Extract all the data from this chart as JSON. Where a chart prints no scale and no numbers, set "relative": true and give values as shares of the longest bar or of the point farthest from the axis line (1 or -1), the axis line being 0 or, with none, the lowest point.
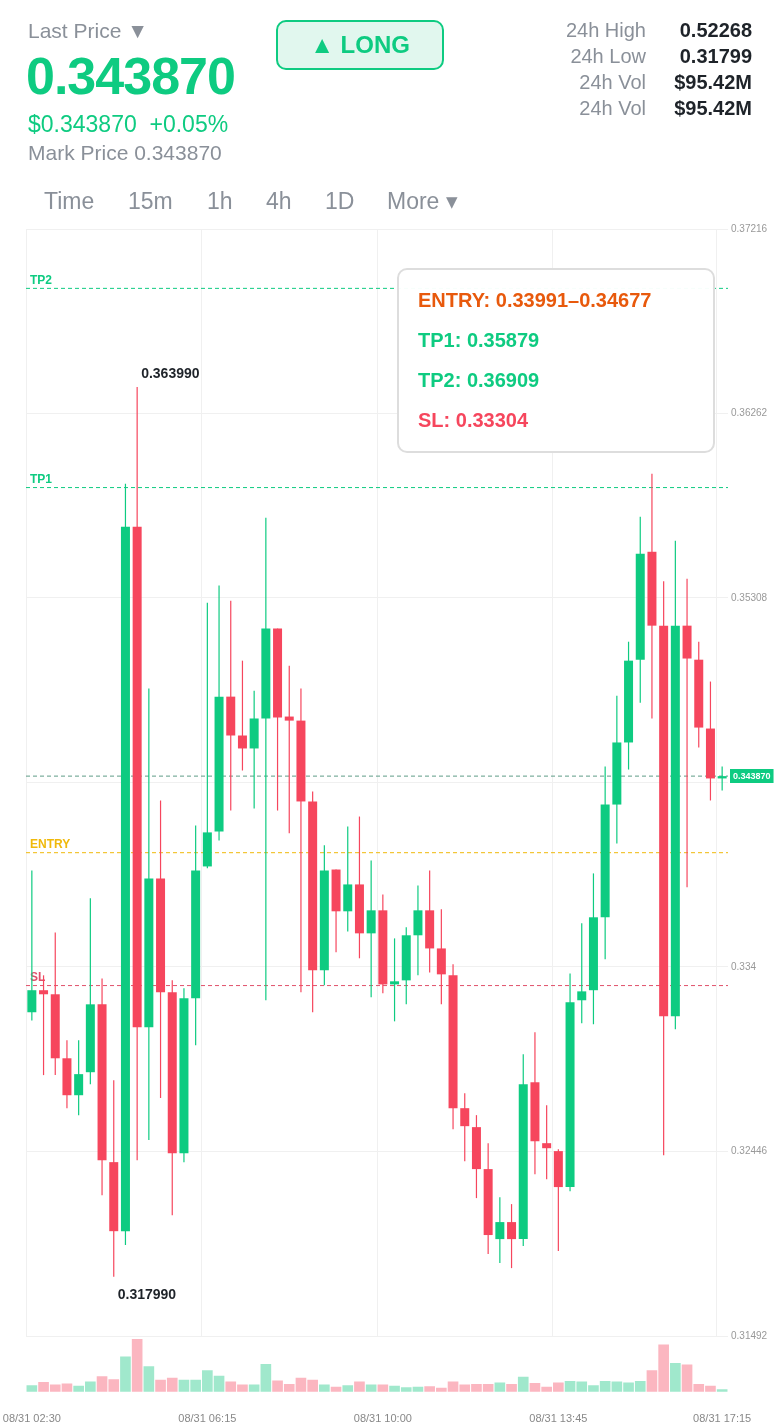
{
  "chart_data": [
    {
      "type": "candlestick",
      "categories": [
        "08/31 02:30",
        null,
        null,
        null,
        null,
        null,
        null,
        null,
        null,
        null,
        null,
        null,
        null,
        null,
        null,
        "08/31 06:15",
        null,
        null,
        null,
        null,
        null,
        null,
        null,
        null,
        null,
        null,
        null,
        null,
        null,
        null,
        "08/31 10:00",
        null,
        null,
        null,
        null,
        null,
        null,
        null,
        null,
        null,
        null,
        null,
        null,
        null,
        null,
        "08/31 13:45",
        null,
        null,
        null,
        null,
        null,
        null,
        null,
        null,
        null,
        null,
        null,
        null,
        null,
        "08/31 17:15"
      ],
      "ohlc": [
        [
          0.33166,
          0.33899,
          0.33124,
          0.3328
        ],
        [
          0.3328,
          0.33357,
          0.32841,
          0.33259
        ],
        [
          0.33259,
          0.33579,
          0.32841,
          0.32928
        ],
        [
          0.32928,
          0.33021,
          0.3267,
          0.32737
        ],
        [
          0.32737,
          0.33021,
          0.32634,
          0.32846
        ],
        [
          0.32856,
          0.33755,
          0.32794,
          0.33207
        ],
        [
          0.33207,
          0.33341,
          0.3222,
          0.32401
        ],
        [
          0.32391,
          0.32815,
          0.31799,
          0.32034
        ],
        [
          0.32034,
          0.35899,
          0.31962,
          0.35677
        ],
        [
          0.35677,
          0.36399,
          0.32401,
          0.33088
        ],
        [
          0.33088,
          0.3484,
          0.32505,
          0.33858
        ],
        [
          0.33858,
          0.34261,
          0.32722,
          0.33269
        ],
        [
          0.33269,
          0.33331,
          0.32117,
          0.32437
        ],
        [
          0.32437,
          0.3329,
          0.32391,
          0.33238
        ],
        [
          0.33238,
          0.34132,
          0.32995,
          0.33899
        ],
        [
          0.3392,
          0.35283,
          0.3391,
          0.34096
        ],
        [
          0.34101,
          0.35372,
          0.34054,
          0.34798
        ],
        [
          0.34798,
          0.35294,
          0.34209,
          0.34597
        ],
        [
          0.34597,
          0.34984,
          0.34416,
          0.3453
        ],
        [
          0.3453,
          0.34829,
          0.3422,
          0.34685
        ],
        [
          0.34685,
          0.35723,
          0.33228,
          0.3515
        ],
        [
          0.3515,
          0.3515,
          0.34209,
          0.3469
        ],
        [
          0.34695,
          0.34958,
          0.34091,
          0.34674
        ],
        [
          0.34674,
          0.3484,
          0.33269,
          0.34256
        ],
        [
          0.34256,
          0.34308,
          0.33166,
          0.33383
        ],
        [
          0.33383,
          0.34029,
          0.33305,
          0.33899
        ],
        [
          0.33904,
          0.33904,
          0.33476,
          0.33688
        ],
        [
          0.33688,
          0.34127,
          0.33584,
          0.33827
        ],
        [
          0.33827,
          0.34178,
          0.33445,
          0.33574
        ],
        [
          0.33574,
          0.33951,
          0.33244,
          0.33693
        ],
        [
          0.33693,
          0.33775,
          0.33264,
          0.3331
        ],
        [
          0.3331,
          0.33548,
          0.33119,
          0.33326
        ],
        [
          0.33331,
          0.33605,
          0.33207,
          0.33564
        ],
        [
          0.33564,
          0.33822,
          0.33357,
          0.33693
        ],
        [
          0.33693,
          0.33899,
          0.33372,
          0.33496
        ],
        [
          0.33496,
          0.33698,
          0.33207,
          0.33362
        ],
        [
          0.33357,
          0.33414,
          0.32561,
          0.3267
        ],
        [
          0.3267,
          0.32747,
          0.32396,
          0.32577
        ],
        [
          0.32572,
          0.32634,
          0.32205,
          0.32355
        ],
        [
          0.32355,
          0.32489,
          0.31916,
          0.32014
        ],
        [
          0.31993,
          0.3221,
          0.31869,
          0.32081
        ],
        [
          0.32081,
          0.32174,
          0.31843,
          0.31993
        ],
        [
          0.31993,
          0.32949,
          0.31957,
          0.32794
        ],
        [
          0.32804,
          0.33063,
          0.32329,
          0.32499
        ],
        [
          0.32489,
          0.32685,
          0.32303,
          0.32463
        ],
        [
          0.32448,
          0.32458,
          0.31931,
          0.32262
        ],
        [
          0.32262,
          0.33367,
          0.32241,
          0.33218
        ],
        [
          0.33228,
          0.33626,
          0.33109,
          0.33274
        ],
        [
          0.3328,
          0.33884,
          0.33104,
          0.33657
        ],
        [
          0.33657,
          0.34437,
          0.3344,
          0.3424
        ],
        [
          0.3424,
          0.34803,
          0.34039,
          0.34561
        ],
        [
          0.34561,
          0.35082,
          0.34421,
          0.34984
        ],
        [
          0.34989,
          0.35728,
          0.34767,
          0.35537
        ],
        [
          0.35547,
          0.3595,
          0.34685,
          0.35165
        ],
        [
          0.35165,
          0.35394,
          0.32427,
          0.33145
        ],
        [
          0.33145,
          0.35604,
          0.33078,
          0.35165
        ],
        [
          0.35165,
          0.35408,
          0.33812,
          0.34995
        ],
        [
          0.34989,
          0.35082,
          0.34535,
          0.34638
        ],
        [
          0.34633,
          0.34876,
          0.34261,
          0.34375
        ],
        [
          0.34375,
          0.34437,
          0.34313,
          0.34387
        ]
      ],
      "ylim": [
        0.31492,
        0.37216
      ],
      "yticks": [
        0.31492,
        0.32446,
        0.334,
        {
          "value": 0.34354,
          "label": null
        },
        0.35308,
        0.36262,
        0.37216
      ],
      "grid": true,
      "legend": false,
      "ref_lines": [
        {
          "axis": "y",
          "value": 0.36909,
          "label": "TP2",
          "color": "#0ecb81",
          "line_style": "dashed"
        },
        {
          "axis": "y",
          "value": 0.35879,
          "label": "TP1",
          "color": "#0ecb81",
          "line_style": "dashed"
        },
        {
          "axis": "y",
          "value": 0.33991,
          "label": "ENTRY",
          "color": "#f0b90b",
          "line_style": "dashed"
        },
        {
          "axis": "y",
          "value": 0.33304,
          "label": "SL",
          "color": "#e0506a",
          "line_style": "dashed"
        },
        {
          "axis": "y",
          "value": 0.34387,
          "label": "0.343870",
          "color": "#5e9c86",
          "line_style": "dashed"
        }
      ],
      "annotations": [
        "Last Price ▼",
        "0.343870",
        "$0.343870  +0.05%",
        "Mark Price 0.343870",
        "▲ LONG",
        "24h High",
        "0.52268",
        "24h Low",
        "0.31799",
        "24h Vol",
        "$95.42M",
        "24h Vol",
        "$95.42M",
        "Time",
        "15m",
        "1h",
        "4h",
        "1D",
        "More ▾",
        "ENTRY: 0.33991–0.34677",
        "TP1: 0.35879",
        "TP2: 0.36909",
        "SL: 0.33304",
        "0.363990",
        "0.317990"
      ]
    },
    {
      "type": "bar",
      "relative": true,
      "categories": [
        null,
        null,
        null,
        null,
        null,
        null,
        null,
        null,
        null,
        null,
        null,
        null,
        null,
        null,
        null,
        null,
        null,
        null,
        null,
        null,
        null,
        null,
        null,
        null,
        null,
        null,
        null,
        null,
        null,
        null,
        null,
        null,
        null,
        null,
        null,
        null,
        null,
        null,
        null,
        null,
        null,
        null,
        null,
        null,
        null,
        null,
        null,
        null,
        null,
        null,
        null,
        null,
        null,
        null,
        null,
        null,
        null,
        null,
        null,
        null
      ],
      "values": [
        0.12,
        0.18,
        0.13,
        0.15,
        0.11,
        0.19,
        0.29,
        0.23,
        0.66,
        1,
        0.48,
        0.22,
        0.26,
        0.22,
        0.22,
        0.4,
        0.3,
        0.19,
        0.13,
        0.13,
        0.52,
        0.21,
        0.14,
        0.26,
        0.22,
        0.13,
        0.09,
        0.12,
        0.19,
        0.13,
        0.13,
        0.11,
        0.08,
        0.09,
        0.1,
        0.07,
        0.19,
        0.13,
        0.14,
        0.14,
        0.17,
        0.14,
        0.28,
        0.16,
        0.09,
        0.17,
        0.2,
        0.19,
        0.12,
        0.2,
        0.19,
        0.17,
        0.2,
        0.4,
        0.89,
        0.54,
        0.51,
        0.14,
        0.11,
        0.04
      ],
      "colors": [
        "#a0e8cc",
        "#fbb6c0",
        "#fbb6c0",
        "#fbb6c0",
        "#a0e8cc",
        "#a0e8cc",
        "#fbb6c0",
        "#fbb6c0",
        "#a0e8cc",
        "#fbb6c0",
        "#a0e8cc",
        "#fbb6c0",
        "#fbb6c0",
        "#a0e8cc",
        "#a0e8cc",
        "#a0e8cc",
        "#a0e8cc",
        "#fbb6c0",
        "#fbb6c0",
        "#a0e8cc",
        "#a0e8cc",
        "#fbb6c0",
        "#fbb6c0",
        "#fbb6c0",
        "#fbb6c0",
        "#a0e8cc",
        "#fbb6c0",
        "#a0e8cc",
        "#fbb6c0",
        "#a0e8cc",
        "#fbb6c0",
        "#a0e8cc",
        "#a0e8cc",
        "#a0e8cc",
        "#fbb6c0",
        "#fbb6c0",
        "#fbb6c0",
        "#fbb6c0",
        "#fbb6c0",
        "#fbb6c0",
        "#a0e8cc",
        "#fbb6c0",
        "#a0e8cc",
        "#fbb6c0",
        "#fbb6c0",
        "#fbb6c0",
        "#a0e8cc",
        "#a0e8cc",
        "#a0e8cc",
        "#a0e8cc",
        "#a0e8cc",
        "#a0e8cc",
        "#a0e8cc",
        "#fbb6c0",
        "#fbb6c0",
        "#a0e8cc",
        "#fbb6c0",
        "#fbb6c0",
        "#fbb6c0",
        "#a0e8cc"
      ],
      "legend": false
    }
  ]
}
